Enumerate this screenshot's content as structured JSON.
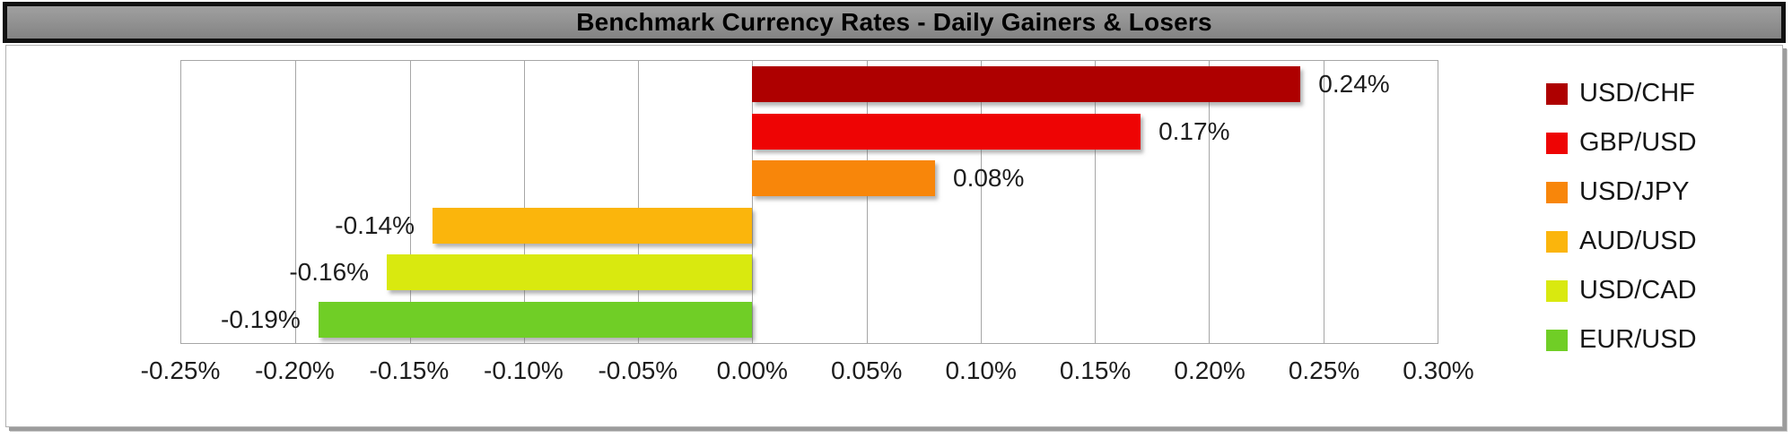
{
  "panel": {
    "title": "Benchmark Currency Rates - Daily Gainers & Losers"
  },
  "chart_data": {
    "type": "bar",
    "orientation": "horizontal",
    "title": "Benchmark Currency Rates - Daily Gainers & Losers",
    "categories": [
      "USD/CHF",
      "GBP/USD",
      "USD/JPY",
      "AUD/USD",
      "USD/CAD",
      "EUR/USD"
    ],
    "values": [
      0.24,
      0.17,
      0.08,
      -0.14,
      -0.16,
      -0.19
    ],
    "data_labels": [
      "0.24%",
      "0.17%",
      "0.08%",
      "-0.14%",
      "-0.16%",
      "-0.19%"
    ],
    "bar_colors": [
      "#AE0000",
      "#EE0404",
      "#F8860A",
      "#FBB50C",
      "#D9E90F",
      "#70CE26"
    ],
    "xlim": [
      -0.25,
      0.3
    ],
    "x_ticks": [
      -0.25,
      -0.2,
      -0.15,
      -0.1,
      -0.05,
      0.0,
      0.05,
      0.1,
      0.15,
      0.2,
      0.25,
      0.3
    ],
    "x_tick_labels": [
      "-0.25%",
      "-0.20%",
      "-0.15%",
      "-0.10%",
      "-0.05%",
      "0.00%",
      "0.05%",
      "0.10%",
      "0.15%",
      "0.20%",
      "0.25%",
      "0.30%"
    ],
    "grid": true,
    "legend_position": "right",
    "legend": [
      {
        "label": "USD/CHF",
        "color": "#AE0000"
      },
      {
        "label": "GBP/USD",
        "color": "#EE0404"
      },
      {
        "label": "USD/JPY",
        "color": "#F8860A"
      },
      {
        "label": "AUD/USD",
        "color": "#FBB50C"
      },
      {
        "label": "USD/CAD",
        "color": "#D9E90F"
      },
      {
        "label": "EUR/USD",
        "color": "#70CE26"
      }
    ]
  },
  "colors": {
    "title_bar_bg": "#8F8F8F",
    "title_bar_border": "#111111",
    "title_text": "#000000",
    "gridline": "#A6A6A6",
    "axis_text": "#1D1D1D",
    "plot_bg": "#FFFFFF"
  }
}
